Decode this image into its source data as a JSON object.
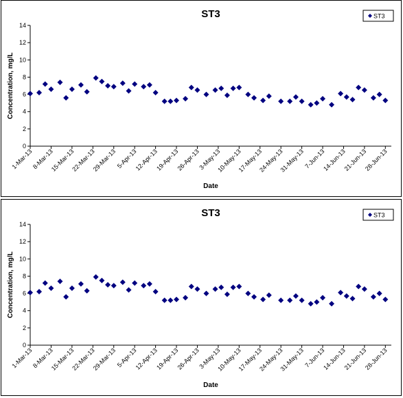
{
  "chart_data": [
    {
      "type": "scatter",
      "title": "ST3",
      "xlabel": "Date",
      "ylabel": "Concentration, mg/L",
      "ylim": [
        0,
        14
      ],
      "yticks": [
        0,
        2,
        4,
        6,
        8,
        10,
        12,
        14
      ],
      "xlim": [
        "1-Mar-13",
        "30-Jun-13"
      ],
      "xticks": [
        "1-Mar-13",
        "8-Mar-13",
        "15-Mar-13",
        "22-Mar-13",
        "29-Mar-13",
        "5-Apr-13",
        "12-Apr-13",
        "19-Apr-13",
        "26-Apr-13",
        "3-May-13",
        "10-May-13",
        "17-May-13",
        "24-May-13",
        "31-May-13",
        "7-Jun-13",
        "14-Jun-13",
        "21-Jun-13",
        "28-Jun-13"
      ],
      "legend": "top-right",
      "grid": false,
      "marker": "diamond",
      "color": "#000080",
      "series": [
        {
          "name": "ST3",
          "x": [
            "1-Mar-13",
            "4-Mar-13",
            "6-Mar-13",
            "8-Mar-13",
            "11-Mar-13",
            "13-Mar-13",
            "15-Mar-13",
            "18-Mar-13",
            "20-Mar-13",
            "23-Mar-13",
            "25-Mar-13",
            "27-Mar-13",
            "29-Mar-13",
            "1-Apr-13",
            "3-Apr-13",
            "5-Apr-13",
            "8-Apr-13",
            "10-Apr-13",
            "12-Apr-13",
            "15-Apr-13",
            "17-Apr-13",
            "19-Apr-13",
            "22-Apr-13",
            "24-Apr-13",
            "26-Apr-13",
            "29-Apr-13",
            "2-May-13",
            "4-May-13",
            "6-May-13",
            "8-May-13",
            "10-May-13",
            "13-May-13",
            "15-May-13",
            "18-May-13",
            "20-May-13",
            "24-May-13",
            "27-May-13",
            "29-May-13",
            "31-May-13",
            "3-Jun-13",
            "5-Jun-13",
            "7-Jun-13",
            "10-Jun-13",
            "13-Jun-13",
            "15-Jun-13",
            "17-Jun-13",
            "19-Jun-13",
            "21-Jun-13",
            "24-Jun-13",
            "26-Jun-13",
            "28-Jun-13"
          ],
          "y": [
            6.1,
            6.2,
            7.2,
            6.6,
            7.4,
            5.6,
            6.6,
            7.1,
            6.3,
            7.9,
            7.5,
            7.0,
            6.9,
            7.3,
            6.4,
            7.2,
            6.9,
            7.1,
            6.2,
            5.2,
            5.2,
            5.3,
            5.5,
            6.8,
            6.5,
            6.0,
            6.5,
            6.7,
            5.9,
            6.7,
            6.8,
            6.0,
            5.6,
            5.3,
            5.8,
            5.2,
            5.2,
            5.7,
            5.2,
            4.8,
            5.0,
            5.5,
            4.8,
            6.1,
            5.7,
            5.4,
            6.8,
            6.5,
            5.6,
            6.0,
            5.3
          ]
        }
      ]
    },
    {
      "type": "scatter",
      "title": "ST3",
      "xlabel": "Date",
      "ylabel": "Concentration, mg/L",
      "ylim": [
        0,
        14
      ],
      "yticks": [
        0,
        2,
        4,
        6,
        8,
        10,
        12,
        14
      ],
      "xlim": [
        "1-Mar-13",
        "30-Jun-13"
      ],
      "xticks": [
        "1-Mar-13",
        "8-Mar-13",
        "15-Mar-13",
        "22-Mar-13",
        "29-Mar-13",
        "5-Apr-13",
        "12-Apr-13",
        "19-Apr-13",
        "26-Apr-13",
        "3-May-13",
        "10-May-13",
        "17-May-13",
        "24-May-13",
        "31-May-13",
        "7-Jun-13",
        "14-Jun-13",
        "21-Jun-13",
        "28-Jun-13"
      ],
      "legend": "top-right",
      "grid": false,
      "marker": "diamond",
      "color": "#000080",
      "series": [
        {
          "name": "ST3",
          "x": [
            "1-Mar-13",
            "4-Mar-13",
            "6-Mar-13",
            "8-Mar-13",
            "11-Mar-13",
            "13-Mar-13",
            "15-Mar-13",
            "18-Mar-13",
            "20-Mar-13",
            "23-Mar-13",
            "25-Mar-13",
            "27-Mar-13",
            "29-Mar-13",
            "1-Apr-13",
            "3-Apr-13",
            "5-Apr-13",
            "8-Apr-13",
            "10-Apr-13",
            "12-Apr-13",
            "15-Apr-13",
            "17-Apr-13",
            "19-Apr-13",
            "22-Apr-13",
            "24-Apr-13",
            "26-Apr-13",
            "29-Apr-13",
            "2-May-13",
            "4-May-13",
            "6-May-13",
            "8-May-13",
            "10-May-13",
            "13-May-13",
            "15-May-13",
            "18-May-13",
            "20-May-13",
            "24-May-13",
            "27-May-13",
            "29-May-13",
            "31-May-13",
            "3-Jun-13",
            "5-Jun-13",
            "7-Jun-13",
            "10-Jun-13",
            "13-Jun-13",
            "15-Jun-13",
            "17-Jun-13",
            "19-Jun-13",
            "21-Jun-13",
            "24-Jun-13",
            "26-Jun-13",
            "28-Jun-13"
          ],
          "y": [
            6.1,
            6.2,
            7.2,
            6.6,
            7.4,
            5.6,
            6.6,
            7.1,
            6.3,
            7.9,
            7.5,
            7.0,
            6.9,
            7.3,
            6.4,
            7.2,
            6.9,
            7.1,
            6.2,
            5.2,
            5.2,
            5.3,
            5.5,
            6.8,
            6.5,
            6.0,
            6.5,
            6.7,
            5.9,
            6.7,
            6.8,
            6.0,
            5.6,
            5.3,
            5.8,
            5.2,
            5.2,
            5.7,
            5.2,
            4.8,
            5.0,
            5.5,
            4.8,
            6.1,
            5.7,
            5.4,
            6.8,
            6.5,
            5.6,
            6.0,
            5.3
          ]
        }
      ]
    }
  ]
}
